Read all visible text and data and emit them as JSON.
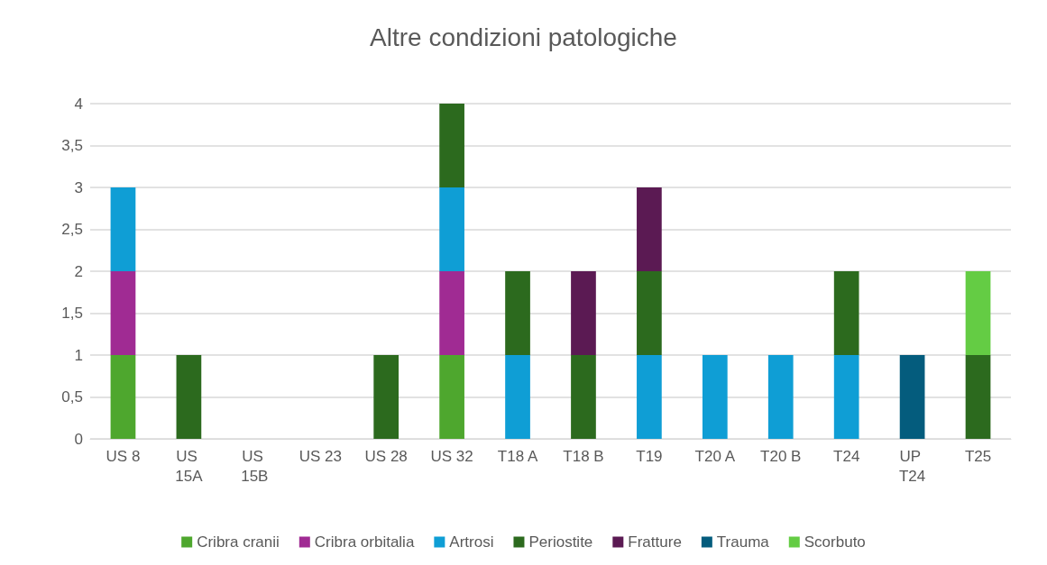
{
  "chart_data": {
    "type": "bar",
    "title": "Altre condizioni patologiche",
    "stacked": true,
    "grid": "y",
    "legend": "bottom",
    "categories": [
      "US 8",
      "US 15A",
      "US 15B",
      "US 23",
      "US 28",
      "US 32",
      "T18 A",
      "T18 B",
      "T19",
      "T20 A",
      "T20 B",
      "T24",
      "UP T24",
      "T25"
    ],
    "ylim": [
      0,
      4
    ],
    "yticks": [
      0,
      {
        "value": 0.5,
        "label": "0,5"
      },
      1,
      {
        "value": 1.5,
        "label": "1,5"
      },
      2,
      {
        "value": 2.5,
        "label": "2,5"
      },
      3,
      {
        "value": 3.5,
        "label": "3,5"
      },
      4
    ],
    "series": [
      {
        "name": "Cribra cranii",
        "color": "#4ea72e",
        "values": [
          1,
          null,
          null,
          null,
          null,
          1,
          null,
          null,
          null,
          null,
          null,
          null,
          null,
          null
        ]
      },
      {
        "name": "Cribra orbitalia",
        "color": "#a02b93",
        "values": [
          1,
          null,
          null,
          null,
          null,
          1,
          null,
          null,
          null,
          null,
          null,
          null,
          null,
          null
        ]
      },
      {
        "name": "Artrosi",
        "color": "#0f9ed5",
        "values": [
          1,
          null,
          null,
          null,
          null,
          1,
          1,
          null,
          1,
          1,
          1,
          1,
          null,
          null
        ]
      },
      {
        "name": "Periostite",
        "color": "#2c6a1e",
        "values": [
          null,
          1,
          null,
          null,
          1,
          1,
          1,
          1,
          1,
          null,
          null,
          1,
          null,
          1
        ]
      },
      {
        "name": "Fratture",
        "color": "#5b1a53",
        "values": [
          null,
          null,
          null,
          null,
          null,
          null,
          null,
          1,
          1,
          null,
          null,
          null,
          null,
          null
        ]
      },
      {
        "name": "Trauma",
        "color": "#045c7d",
        "values": [
          null,
          null,
          null,
          null,
          null,
          null,
          null,
          null,
          null,
          null,
          null,
          null,
          1,
          null
        ]
      },
      {
        "name": "Scorbuto",
        "color": "#64cc44",
        "values": [
          null,
          null,
          null,
          null,
          null,
          null,
          null,
          null,
          null,
          null,
          null,
          null,
          null,
          1
        ]
      }
    ]
  }
}
